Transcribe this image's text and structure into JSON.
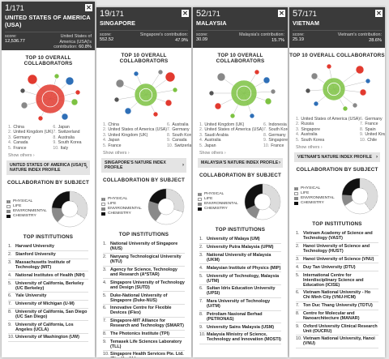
{
  "cards": [
    {
      "rank": "1",
      "rank_total": "/171",
      "country": "UNITED STATES OF AMERICA (USA)",
      "score_label": "score:",
      "score": "12,536.77",
      "contrib_label": "United States of America (USA)'s contribution:",
      "contrib": "60.8%",
      "net_title": "TOP 10 OVERALL COLLABORATORS",
      "collaborators": [
        "China",
        "United Kingdom (UK)",
        "Germany",
        "Canada",
        "France",
        "Japan",
        "Switzerland",
        "Australia",
        "South Korea",
        "Italy"
      ],
      "show_others": "Show others",
      "profile_label": "UNITED STATES OF AMERICA (USA)'S NATURE INDEX PROFILE",
      "subject_title": "COLLABORATION BY SUBJECT",
      "subjects": [
        "PHYSICAL",
        "LIFE",
        "ENVIRONMENTAL",
        "CHEMISTRY"
      ],
      "inst_title": "TOP INSTITUTIONS",
      "institutions": [
        "Harvard University",
        "Stanford University",
        "Massachusetts Institute of Technology (MIT)",
        "National Institutes of Health (NIH)",
        "University of California, Berkeley (UC Berkeley)",
        "Yale University",
        "University of Michigan (U-M)",
        "University of California, San Diego (UC San Diego)",
        "University of California, Los Angeles (UCLA)",
        "University of Washington (UW)"
      ]
    },
    {
      "rank": "19",
      "rank_total": "/171",
      "country": "SINGAPORE",
      "score_label": "score:",
      "score": "552.52",
      "contrib_label": "Singapore's contribution:",
      "contrib": "47.9%",
      "net_title": "TOP 10 OVERALL COLLABORATORS",
      "collaborators": [
        "China",
        "United States of America (USA)",
        "United Kingdom (UK)",
        "Japan",
        "France",
        "Australia",
        "Germany",
        "South Korea",
        "Canada",
        "Switzerland"
      ],
      "show_others": "Show others",
      "profile_label": "SINGAPORE'S NATURE INDEX PROFILE",
      "subject_title": "COLLABORATION BY SUBJECT",
      "subjects": [
        "PHYSICAL",
        "LIFE",
        "ENVIRONMENTAL",
        "CHEMISTRY"
      ],
      "inst_title": "TOP INSTITUTIONS",
      "institutions": [
        "National University of Singapore (NUS)",
        "Nanyang Technological University (NTU)",
        "Agency for Science, Technology and Research (A*STAR)",
        "Singapore University of Technology and Design (SUTD)",
        "Duke-National University of Singapore (Duke-NUS)",
        "Innovative Centre for Flexible Devices (iFlex)",
        "Singapore-MIT Alliance for Research and Technology (SMART)",
        "The Photonics Institute (TPI)",
        "Temasek Life Sciences Laboratory (TLL)",
        "Singapore Health Services Pte. Ltd. (SingHealth)"
      ]
    },
    {
      "rank": "52",
      "rank_total": "/171",
      "country": "MALAYSIA",
      "score_label": "score:",
      "score": "30.09",
      "contrib_label": "Malaysia's contribution:",
      "contrib": "15.7%",
      "net_title": "TOP 10 OVERALL COLLABORATORS",
      "collaborators": [
        "United Kingdom (UK)",
        "United States of America (USA)",
        "Saudi Arabia",
        "Australia",
        "Japan",
        "Indonesia",
        "South Korea",
        "Germany",
        "Singapore",
        "France"
      ],
      "show_others": "Show others",
      "profile_label": "MALAYSIA'S NATURE INDEX PROFILE",
      "subject_title": "COLLABORATION BY SUBJECT",
      "subjects": [
        "PHYSICAL",
        "LIFE",
        "ENVIRONMENTAL",
        "CHEMISTRY"
      ],
      "inst_title": "TOP INSTITUTIONS",
      "institutions": [
        "University of Malaya (UM)",
        "University Putra Malaysia (UPM)",
        "National University of Malaysia (UKM)",
        "Malaysian Institute of Physics (MIP)",
        "University of Technology, Malaysia (UTM)",
        "Sultan Idris Education University (UPSI)",
        "Mara University of Technology (UiTM)",
        "Petroliam Nasional Berhad (PETRONAS)",
        "University Sains Malaysia (USM)",
        "Malaysia Ministry of Science, Technology and Innovation (MOSTI)"
      ]
    },
    {
      "rank": "57",
      "rank_total": "/171",
      "country": "VIETNAM",
      "score_label": "score:",
      "score": "25.19",
      "contrib_label": "Vietnam's contribution:",
      "contrib": "28.6%",
      "net_title": "TOP 10 OVERALL COLLABORATORS",
      "collaborators": [
        "United States of America (USA)",
        "Russia",
        "Singapore",
        "Australia",
        "South Korea",
        "Germany",
        "France",
        "Spain",
        "United Kingdom (UK)",
        "Chile"
      ],
      "show_others": "Show others",
      "profile_label": "VIETNAM'S NATURE INDEX PROFILE",
      "subject_title": "COLLABORATION BY SUBJECT",
      "subjects": [
        "PHYSICAL",
        "LIFE",
        "ENVIRONMENTAL",
        "CHEMISTRY"
      ],
      "inst_title": "TOP INSTITUTIONS",
      "institutions": [
        "Vietnam Academy of Science and Technology (VAST)",
        "Hanoi University of Science and Technology (HUST)",
        "Hanoi University of Science (VNU)",
        "Duy Tan University (DTU)",
        "International Centre for Interdisciplinary Science and Education (ICISE)",
        "Vietnam National University - Ho Chi Minh City (VNU-HCM)",
        "Ton Duc Thang University (TDTU)",
        "Centre for Molecular and Nanoarchitecture (MANAR)",
        "Oxford University Clinical Research Unit (OUCRU)",
        "Vietnam National University, Hanoi (VNU)"
      ]
    }
  ],
  "colors": {
    "header_bg": "#3a3a3a",
    "accent_red": "#e23a2f",
    "accent_green": "#7dc242",
    "accent_blue": "#2e6fb7"
  }
}
